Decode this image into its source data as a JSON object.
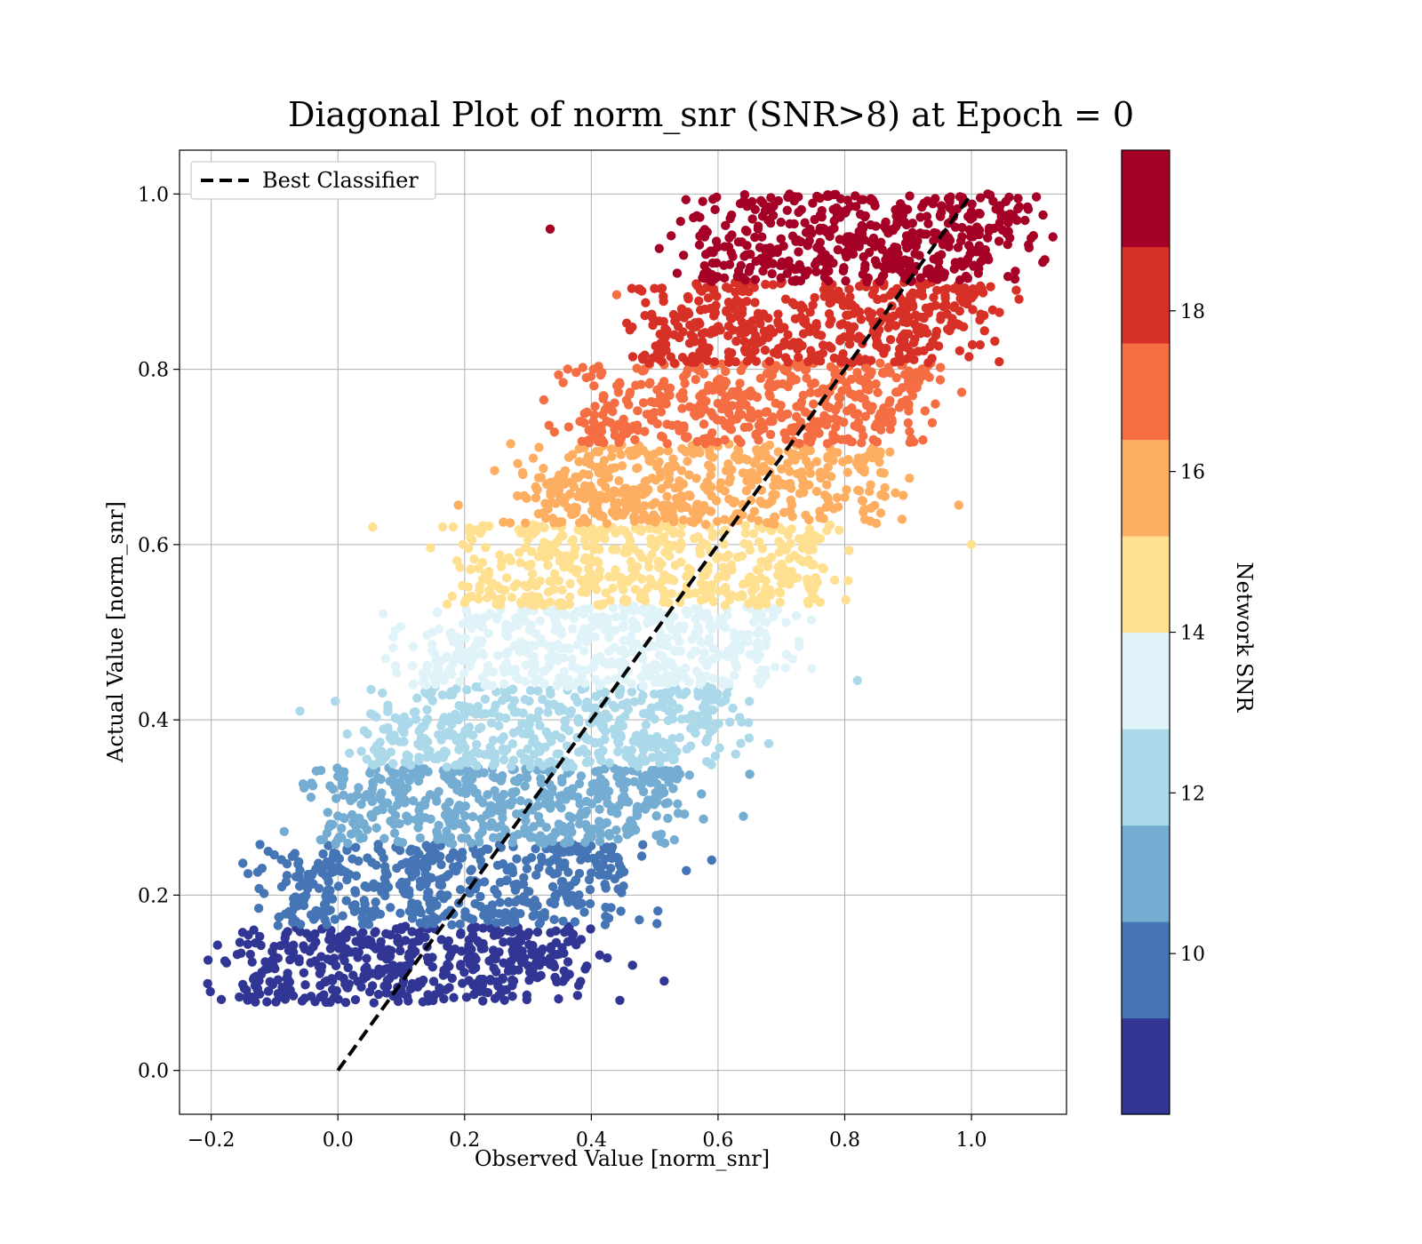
{
  "chart_data": {
    "type": "scatter",
    "title": "Diagonal Plot of norm_snr (SNR>8) at Epoch = 0",
    "xlabel": "Observed Value [norm_snr]",
    "ylabel": "Actual Value [norm_snr]",
    "xlim": [
      -0.25,
      1.15
    ],
    "ylim": [
      -0.05,
      1.05
    ],
    "x_ticks": [
      -0.2,
      0.0,
      0.2,
      0.4,
      0.6,
      0.8,
      1.0
    ],
    "x_tick_labels": [
      "−0.2",
      "0.0",
      "0.2",
      "0.4",
      "0.6",
      "0.8",
      "1.0"
    ],
    "y_ticks": [
      0.0,
      0.2,
      0.4,
      0.6,
      0.8,
      1.0
    ],
    "y_tick_labels": [
      "0.0",
      "0.2",
      "0.4",
      "0.6",
      "0.8",
      "1.0"
    ],
    "grid": true,
    "legend": {
      "position": "upper-left",
      "entries": [
        {
          "label": "Best Classifier",
          "style": "dashed",
          "color": "#000000"
        }
      ]
    },
    "reference_line": {
      "label": "Best Classifier",
      "x": [
        0.0,
        1.0
      ],
      "y": [
        0.0,
        1.0
      ]
    },
    "colorbar": {
      "label": "Network SNR",
      "range": [
        8.0,
        20.0
      ],
      "ticks": [
        10,
        12,
        14,
        16,
        18
      ],
      "tick_labels": [
        "10",
        "12",
        "14",
        "16",
        "18"
      ],
      "colors": [
        "#313695",
        "#4575b4",
        "#74add1",
        "#abd9e9",
        "#e0f3f8",
        "#fee090",
        "#fdae61",
        "#f46d43",
        "#d73027",
        "#a50026"
      ]
    },
    "bands": [
      {
        "snr_range": [
          8.0,
          9.2
        ],
        "color": "#313695",
        "actual_range": [
          0.077,
          0.165
        ],
        "observed_core": [
          -0.12,
          0.34
        ]
      },
      {
        "snr_range": [
          9.2,
          10.4
        ],
        "color": "#4575b4",
        "actual_range": [
          0.165,
          0.258
        ],
        "observed_core": [
          -0.06,
          0.42
        ]
      },
      {
        "snr_range": [
          10.4,
          11.6
        ],
        "color": "#74add1",
        "actual_range": [
          0.258,
          0.346
        ],
        "observed_core": [
          0.01,
          0.5
        ]
      },
      {
        "snr_range": [
          11.6,
          12.8
        ],
        "color": "#abd9e9",
        "actual_range": [
          0.346,
          0.438
        ],
        "observed_core": [
          0.08,
          0.58
        ]
      },
      {
        "snr_range": [
          12.8,
          14.0
        ],
        "color": "#e0f3f8",
        "actual_range": [
          0.438,
          0.53
        ],
        "observed_core": [
          0.16,
          0.66
        ]
      },
      {
        "snr_range": [
          14.0,
          15.2
        ],
        "color": "#fee090",
        "actual_range": [
          0.53,
          0.623
        ],
        "observed_core": [
          0.24,
          0.74
        ]
      },
      {
        "snr_range": [
          15.2,
          16.4
        ],
        "color": "#fdae61",
        "actual_range": [
          0.623,
          0.715
        ],
        "observed_core": [
          0.33,
          0.82
        ]
      },
      {
        "snr_range": [
          16.4,
          17.6
        ],
        "color": "#f46d43",
        "actual_range": [
          0.715,
          0.807
        ],
        "observed_core": [
          0.42,
          0.9
        ]
      },
      {
        "snr_range": [
          17.6,
          18.8
        ],
        "color": "#d73027",
        "actual_range": [
          0.807,
          0.9
        ],
        "observed_core": [
          0.52,
          0.98
        ]
      },
      {
        "snr_range": [
          18.8,
          20.0
        ],
        "color": "#a50026",
        "actual_range": [
          0.9,
          1.0
        ],
        "observed_core": [
          0.6,
          1.05
        ]
      }
    ],
    "outliers": [
      {
        "x": 0.335,
        "y": 0.96,
        "color": "#a50026"
      },
      {
        "x": 1.09,
        "y": 0.942,
        "color": "#a50026"
      },
      {
        "x": 1.075,
        "y": 0.88,
        "color": "#d73027"
      },
      {
        "x": 0.44,
        "y": 0.885,
        "color": "#f46d43"
      },
      {
        "x": 0.325,
        "y": 0.765,
        "color": "#f46d43"
      },
      {
        "x": 0.98,
        "y": 0.645,
        "color": "#fdae61"
      },
      {
        "x": 0.19,
        "y": 0.645,
        "color": "#fdae61"
      },
      {
        "x": 0.055,
        "y": 0.62,
        "color": "#fee090"
      },
      {
        "x": 1.0,
        "y": 0.6,
        "color": "#fee090"
      },
      {
        "x": 0.82,
        "y": 0.445,
        "color": "#abd9e9"
      },
      {
        "x": -0.06,
        "y": 0.41,
        "color": "#abd9e9"
      },
      {
        "x": 0.68,
        "y": 0.373,
        "color": "#abd9e9"
      },
      {
        "x": 0.65,
        "y": 0.338,
        "color": "#74add1"
      },
      {
        "x": 0.64,
        "y": 0.29,
        "color": "#74add1"
      },
      {
        "x": -0.055,
        "y": 0.327,
        "color": "#74add1"
      },
      {
        "x": 0.59,
        "y": 0.24,
        "color": "#4575b4"
      },
      {
        "x": 0.55,
        "y": 0.228,
        "color": "#4575b4"
      },
      {
        "x": -0.11,
        "y": 0.25,
        "color": "#4575b4"
      },
      {
        "x": 0.505,
        "y": 0.182,
        "color": "#4575b4"
      },
      {
        "x": -0.125,
        "y": 0.185,
        "color": "#4575b4"
      },
      {
        "x": -0.19,
        "y": 0.143,
        "color": "#313695"
      },
      {
        "x": 0.465,
        "y": 0.12,
        "color": "#313695"
      },
      {
        "x": 0.515,
        "y": 0.102,
        "color": "#313695"
      },
      {
        "x": 0.445,
        "y": 0.08,
        "color": "#313695"
      },
      {
        "x": 0.38,
        "y": 0.097,
        "color": "#313695"
      }
    ]
  }
}
